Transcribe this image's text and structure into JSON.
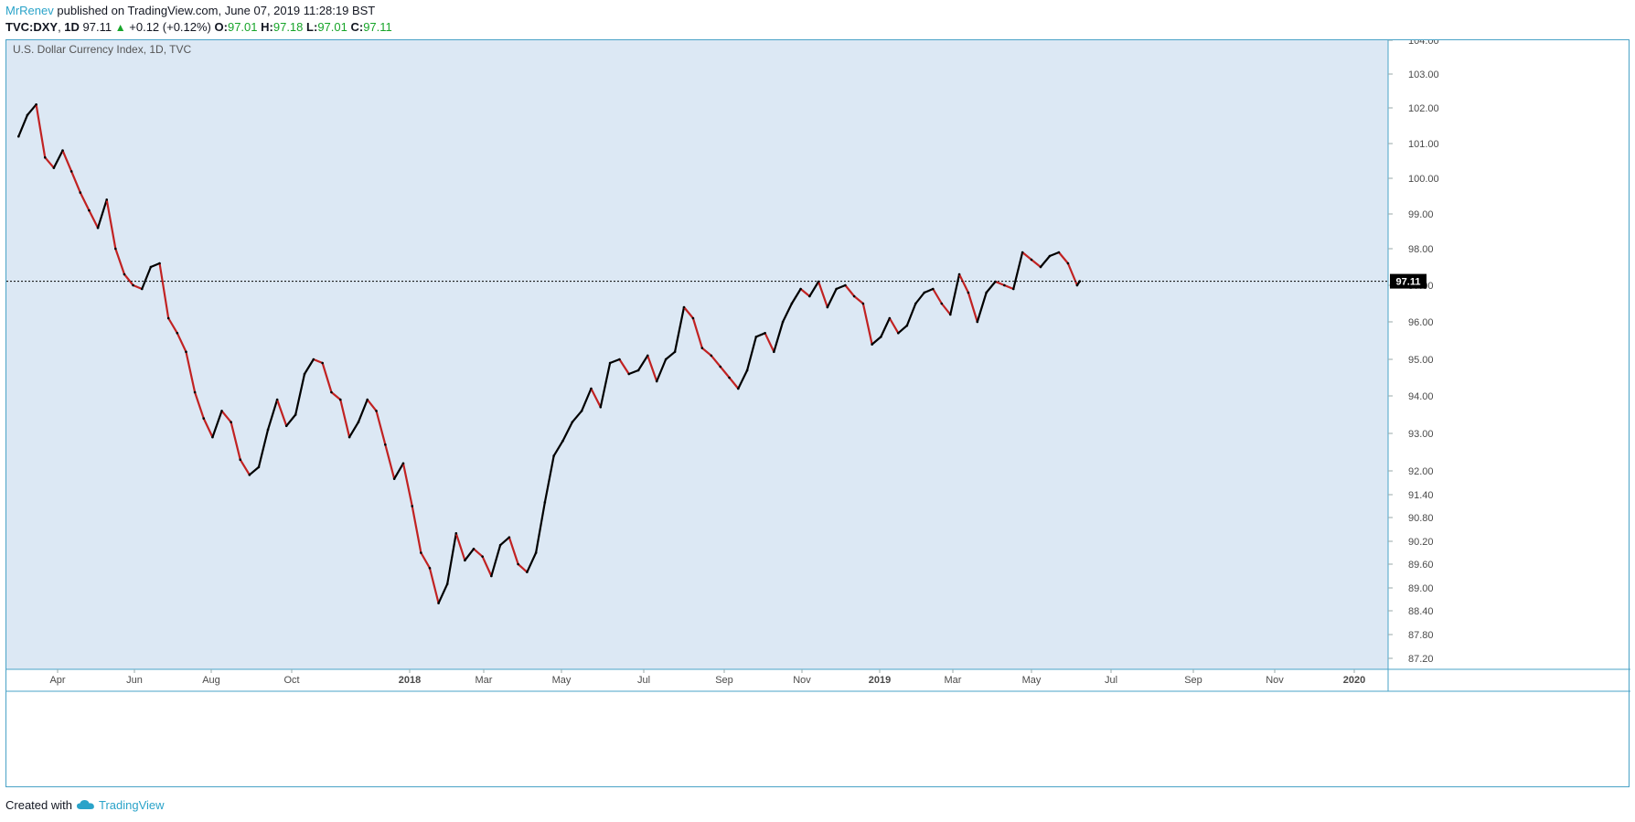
{
  "header": {
    "author": "MrRenev",
    "published_text": "published on TradingView.com, June 07, 2019 11:28:19 BST",
    "symbol": "TVC:DXY",
    "interval": "1D",
    "last": "97.11",
    "change": "+0.12 (+0.12%)",
    "o_label": "O:",
    "o_value": "97.01",
    "h_label": "H:",
    "h_value": "97.18",
    "l_label": "L:",
    "l_value": "97.01",
    "c_label": "C:",
    "c_value": "97.11"
  },
  "footer": {
    "created_with": "Created with",
    "brand": "TradingView"
  },
  "chart_data": {
    "type": "line",
    "title": "U.S. Dollar Currency Index, 1D, TVC",
    "current_price_label": "97.11",
    "x_tick_labels": [
      "Apr",
      "Jun",
      "Aug",
      "Oct",
      "2018",
      "Mar",
      "May",
      "Jul",
      "Sep",
      "Nov",
      "2019",
      "Mar",
      "May",
      "Jul",
      "Sep",
      "Nov",
      "2020"
    ],
    "y_tick_labels": [
      "104.00",
      "103.00",
      "102.00",
      "101.00",
      "100.00",
      "99.00",
      "98.00",
      "97.00",
      "96.00",
      "95.00",
      "94.00",
      "93.00",
      "92.00",
      "91.40",
      "90.80",
      "90.20",
      "89.60",
      "89.00",
      "88.40",
      "87.80",
      "87.20"
    ],
    "series": [
      {
        "x": [
          "2017-03-01",
          "2017-03-08",
          "2017-03-15",
          "2017-03-22",
          "2017-03-29",
          "2017-04-05",
          "2017-04-12",
          "2017-04-19",
          "2017-04-26",
          "2017-05-03",
          "2017-05-10",
          "2017-05-17",
          "2017-05-24",
          "2017-05-31",
          "2017-06-07",
          "2017-06-14",
          "2017-06-21",
          "2017-06-28",
          "2017-07-05",
          "2017-07-12",
          "2017-07-19",
          "2017-07-26",
          "2017-08-02",
          "2017-08-09",
          "2017-08-16",
          "2017-08-23",
          "2017-08-30",
          "2017-09-06",
          "2017-09-13",
          "2017-09-20",
          "2017-09-27",
          "2017-10-04",
          "2017-10-11",
          "2017-10-18",
          "2017-10-25",
          "2017-11-01",
          "2017-11-08",
          "2017-11-15",
          "2017-11-22",
          "2017-11-29",
          "2017-12-06",
          "2017-12-13",
          "2017-12-20",
          "2017-12-27",
          "2018-01-03",
          "2018-01-10",
          "2018-01-17",
          "2018-01-24",
          "2018-01-31",
          "2018-02-07",
          "2018-02-14",
          "2018-02-21",
          "2018-02-28",
          "2018-03-07",
          "2018-03-14",
          "2018-03-21",
          "2018-03-28",
          "2018-04-04",
          "2018-04-11",
          "2018-04-18",
          "2018-04-25",
          "2018-05-02",
          "2018-05-09",
          "2018-05-16",
          "2018-05-23",
          "2018-05-30",
          "2018-06-06",
          "2018-06-13",
          "2018-06-20",
          "2018-06-27",
          "2018-07-04",
          "2018-07-11",
          "2018-07-18",
          "2018-07-25",
          "2018-08-01",
          "2018-08-08",
          "2018-08-15",
          "2018-08-22",
          "2018-08-29",
          "2018-09-05",
          "2018-09-12",
          "2018-09-19",
          "2018-09-26",
          "2018-10-03",
          "2018-10-10",
          "2018-10-17",
          "2018-10-24",
          "2018-10-31",
          "2018-11-07",
          "2018-11-14",
          "2018-11-21",
          "2018-11-28",
          "2018-12-05",
          "2018-12-12",
          "2018-12-19",
          "2018-12-26",
          "2019-01-02",
          "2019-01-09",
          "2019-01-16",
          "2019-01-23",
          "2019-01-30",
          "2019-02-06",
          "2019-02-13",
          "2019-02-20",
          "2019-02-27",
          "2019-03-06",
          "2019-03-13",
          "2019-03-20",
          "2019-03-27",
          "2019-04-03",
          "2019-04-10",
          "2019-04-17",
          "2019-04-24",
          "2019-05-01",
          "2019-05-08",
          "2019-05-15",
          "2019-05-22",
          "2019-05-29",
          "2019-06-05",
          "2019-06-07"
        ],
        "close": [
          101.2,
          101.8,
          102.1,
          100.6,
          100.3,
          100.8,
          100.2,
          99.6,
          99.1,
          98.6,
          99.4,
          98.0,
          97.3,
          97.0,
          96.9,
          97.5,
          97.6,
          96.1,
          95.7,
          95.2,
          94.1,
          93.4,
          92.9,
          93.6,
          93.3,
          92.3,
          91.9,
          92.1,
          93.1,
          93.9,
          93.2,
          93.5,
          94.6,
          95.0,
          94.9,
          94.1,
          93.9,
          92.9,
          93.3,
          93.9,
          93.6,
          92.7,
          91.8,
          92.2,
          91.1,
          89.9,
          89.5,
          88.6,
          89.1,
          90.4,
          89.7,
          90.0,
          89.8,
          89.3,
          90.1,
          90.3,
          89.6,
          89.4,
          89.9,
          91.2,
          92.4,
          92.8,
          93.3,
          93.6,
          94.2,
          93.7,
          94.9,
          95.0,
          94.6,
          94.7,
          95.1,
          94.4,
          95.0,
          95.2,
          96.4,
          96.1,
          95.3,
          95.1,
          94.8,
          94.5,
          94.2,
          94.7,
          95.6,
          95.7,
          95.2,
          96.0,
          96.5,
          96.9,
          96.7,
          97.1,
          96.4,
          96.9,
          97.0,
          96.7,
          96.5,
          95.4,
          95.6,
          96.1,
          95.7,
          95.9,
          96.5,
          96.8,
          96.9,
          96.5,
          96.2,
          97.3,
          96.8,
          96.0,
          96.8,
          97.1,
          97.0,
          96.9,
          97.9,
          97.7,
          97.5,
          97.8,
          97.9,
          97.6,
          97.0,
          97.11
        ]
      }
    ],
    "ylim": [
      86.9,
      104.1
    ],
    "grid": false,
    "background": "#dce8f4",
    "colors": {
      "up": "#000000",
      "down": "#c12222",
      "axis_text": "#4a4a4a",
      "border": "#4aa3c7",
      "price_tag": "#000000"
    }
  }
}
